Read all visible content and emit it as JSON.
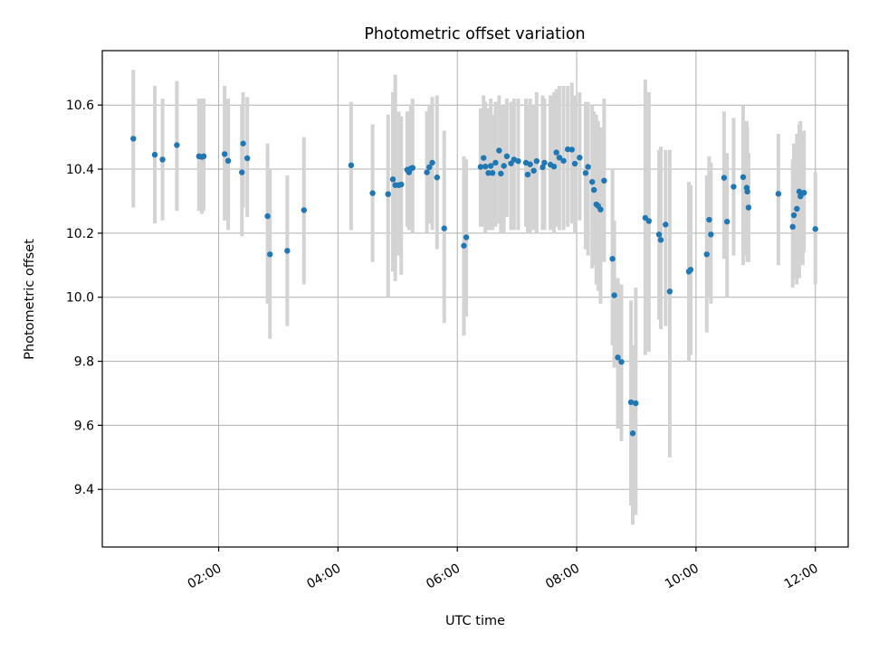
{
  "chart_data": {
    "type": "scatter",
    "title": "Photometric offset variation",
    "xlabel": "UTC time",
    "ylabel": "Photometric offset",
    "x_unit": "hours (UTC)",
    "xlim": [
      0.05,
      12.55
    ],
    "ylim": [
      9.22,
      10.77
    ],
    "x_ticks": [
      {
        "value": 2,
        "label": "02:00"
      },
      {
        "value": 4,
        "label": "04:00"
      },
      {
        "value": 6,
        "label": "06:00"
      },
      {
        "value": 8,
        "label": "08:00"
      },
      {
        "value": 10,
        "label": "10:00"
      },
      {
        "value": 12,
        "label": "12:00"
      }
    ],
    "y_ticks": [
      {
        "value": 9.4,
        "label": "9.4"
      },
      {
        "value": 9.6,
        "label": "9.6"
      },
      {
        "value": 9.8,
        "label": "9.8"
      },
      {
        "value": 10.0,
        "label": "10.0"
      },
      {
        "value": 10.2,
        "label": "10.2"
      },
      {
        "value": 10.4,
        "label": "10.4"
      },
      {
        "value": 10.6,
        "label": "10.6"
      }
    ],
    "grid": true,
    "point_color": "#1f77b4",
    "errorbar_color": "#d3d3d3",
    "points": [
      [
        0.57,
        10.495,
        10.28,
        10.71
      ],
      [
        0.93,
        10.445,
        10.23,
        10.66
      ],
      [
        1.06,
        10.43,
        10.24,
        10.62
      ],
      [
        1.3,
        10.475,
        10.27,
        10.675
      ],
      [
        1.67,
        10.44,
        10.27,
        10.62
      ],
      [
        1.72,
        10.438,
        10.26,
        10.62
      ],
      [
        1.75,
        10.44,
        10.27,
        10.62
      ],
      [
        2.1,
        10.447,
        10.24,
        10.66
      ],
      [
        2.16,
        10.426,
        10.21,
        10.62
      ],
      [
        2.39,
        10.39,
        10.19,
        10.6
      ],
      [
        2.41,
        10.48,
        10.28,
        10.64
      ],
      [
        2.48,
        10.434,
        10.25,
        10.625
      ],
      [
        2.82,
        10.253,
        9.98,
        10.48
      ],
      [
        2.86,
        10.134,
        9.87,
        10.4
      ],
      [
        3.15,
        10.145,
        9.91,
        10.38
      ],
      [
        3.43,
        10.272,
        10.04,
        10.5
      ],
      [
        4.22,
        10.412,
        10.21,
        10.61
      ],
      [
        4.58,
        10.325,
        10.11,
        10.54
      ],
      [
        4.84,
        10.322,
        10.0,
        10.57
      ],
      [
        4.92,
        10.368,
        10.08,
        10.64
      ],
      [
        4.96,
        10.35,
        10.05,
        10.695
      ],
      [
        5.02,
        10.35,
        10.13,
        10.58
      ],
      [
        5.06,
        10.352,
        10.07,
        10.565
      ],
      [
        5.16,
        10.398,
        10.22,
        10.58
      ],
      [
        5.19,
        10.39,
        10.21,
        10.58
      ],
      [
        5.22,
        10.402,
        10.21,
        10.6
      ],
      [
        5.25,
        10.404,
        10.2,
        10.62
      ],
      [
        5.49,
        10.39,
        10.2,
        10.58
      ],
      [
        5.53,
        10.406,
        10.23,
        10.6
      ],
      [
        5.58,
        10.42,
        10.21,
        10.625
      ],
      [
        5.66,
        10.374,
        10.15,
        10.63
      ],
      [
        5.78,
        10.215,
        9.92,
        10.52
      ],
      [
        6.11,
        10.161,
        9.88,
        10.44
      ],
      [
        6.15,
        10.187,
        9.94,
        10.43
      ],
      [
        6.39,
        10.407,
        10.22,
        10.59
      ],
      [
        6.44,
        10.435,
        10.22,
        10.63
      ],
      [
        6.47,
        10.408,
        10.2,
        10.61
      ],
      [
        6.52,
        10.388,
        10.21,
        10.59
      ],
      [
        6.56,
        10.41,
        10.21,
        10.62
      ],
      [
        6.59,
        10.388,
        10.21,
        10.57
      ],
      [
        6.64,
        10.42,
        10.22,
        10.61
      ],
      [
        6.7,
        10.458,
        10.23,
        10.63
      ],
      [
        6.73,
        10.386,
        10.2,
        10.6
      ],
      [
        6.78,
        10.41,
        10.2,
        10.6
      ],
      [
        6.83,
        10.44,
        10.25,
        10.62
      ],
      [
        6.9,
        10.418,
        10.21,
        10.61
      ],
      [
        6.95,
        10.43,
        10.21,
        10.62
      ],
      [
        7.02,
        10.425,
        10.21,
        10.62
      ],
      [
        7.15,
        10.42,
        10.22,
        10.62
      ],
      [
        7.18,
        10.383,
        10.2,
        10.6
      ],
      [
        7.22,
        10.415,
        10.2,
        10.62
      ],
      [
        7.28,
        10.395,
        10.21,
        10.6
      ],
      [
        7.33,
        10.425,
        10.2,
        10.64
      ],
      [
        7.43,
        10.406,
        10.21,
        10.63
      ],
      [
        7.46,
        10.42,
        10.21,
        10.62
      ],
      [
        7.56,
        10.414,
        10.21,
        10.63
      ],
      [
        7.62,
        10.408,
        10.2,
        10.64
      ],
      [
        7.66,
        10.452,
        10.22,
        10.65
      ],
      [
        7.71,
        10.436,
        10.21,
        10.66
      ],
      [
        7.78,
        10.426,
        10.21,
        10.66
      ],
      [
        7.85,
        10.462,
        10.22,
        10.66
      ],
      [
        7.92,
        10.461,
        10.23,
        10.67
      ],
      [
        7.97,
        10.417,
        10.2,
        10.63
      ],
      [
        8.05,
        10.436,
        10.24,
        10.64
      ],
      [
        8.15,
        10.388,
        10.15,
        10.61
      ],
      [
        8.19,
        10.407,
        10.13,
        10.61
      ],
      [
        8.26,
        10.36,
        10.09,
        10.6
      ],
      [
        8.29,
        10.335,
        10.1,
        10.58
      ],
      [
        8.33,
        10.29,
        10.04,
        10.57
      ],
      [
        8.36,
        10.285,
        10.02,
        10.55
      ],
      [
        8.4,
        10.274,
        9.98,
        10.53
      ],
      [
        8.46,
        10.364,
        10.11,
        10.62
      ],
      [
        8.6,
        10.12,
        9.85,
        10.4
      ],
      [
        8.63,
        10.006,
        9.78,
        10.24
      ],
      [
        8.69,
        9.812,
        9.59,
        10.06
      ],
      [
        8.75,
        9.798,
        9.55,
        10.04
      ],
      [
        8.91,
        9.672,
        9.35,
        9.99
      ],
      [
        8.94,
        9.575,
        9.29,
        9.85
      ],
      [
        8.99,
        9.669,
        9.32,
        10.03
      ],
      [
        9.15,
        10.248,
        9.82,
        10.68
      ],
      [
        9.21,
        10.238,
        9.83,
        10.64
      ],
      [
        9.38,
        10.196,
        9.93,
        10.46
      ],
      [
        9.41,
        10.179,
        9.9,
        10.47
      ],
      [
        9.49,
        10.227,
        9.91,
        10.46
      ],
      [
        9.56,
        10.018,
        9.5,
        10.46
      ],
      [
        9.88,
        10.08,
        9.8,
        10.36
      ],
      [
        9.91,
        10.086,
        9.82,
        10.35
      ],
      [
        10.18,
        10.134,
        9.89,
        10.38
      ],
      [
        10.22,
        10.242,
        10.0,
        10.44
      ],
      [
        10.25,
        10.196,
        9.98,
        10.42
      ],
      [
        10.47,
        10.373,
        10.12,
        10.58
      ],
      [
        10.52,
        10.236,
        10.0,
        10.45
      ],
      [
        10.63,
        10.345,
        10.13,
        10.56
      ],
      [
        10.79,
        10.375,
        10.1,
        10.6
      ],
      [
        10.85,
        10.342,
        10.13,
        10.55
      ],
      [
        10.86,
        10.33,
        10.11,
        10.53
      ],
      [
        10.88,
        10.28,
        10.11,
        10.45
      ],
      [
        11.38,
        10.323,
        10.1,
        10.51
      ],
      [
        11.62,
        10.22,
        10.03,
        10.43
      ],
      [
        11.64,
        10.256,
        10.06,
        10.48
      ],
      [
        11.69,
        10.276,
        10.04,
        10.51
      ],
      [
        11.73,
        10.33,
        10.06,
        10.54
      ],
      [
        11.75,
        10.315,
        10.13,
        10.55
      ],
      [
        11.79,
        10.325,
        10.1,
        10.51
      ],
      [
        11.81,
        10.326,
        10.14,
        10.52
      ],
      [
        12.0,
        10.213,
        10.04,
        10.39
      ]
    ]
  }
}
